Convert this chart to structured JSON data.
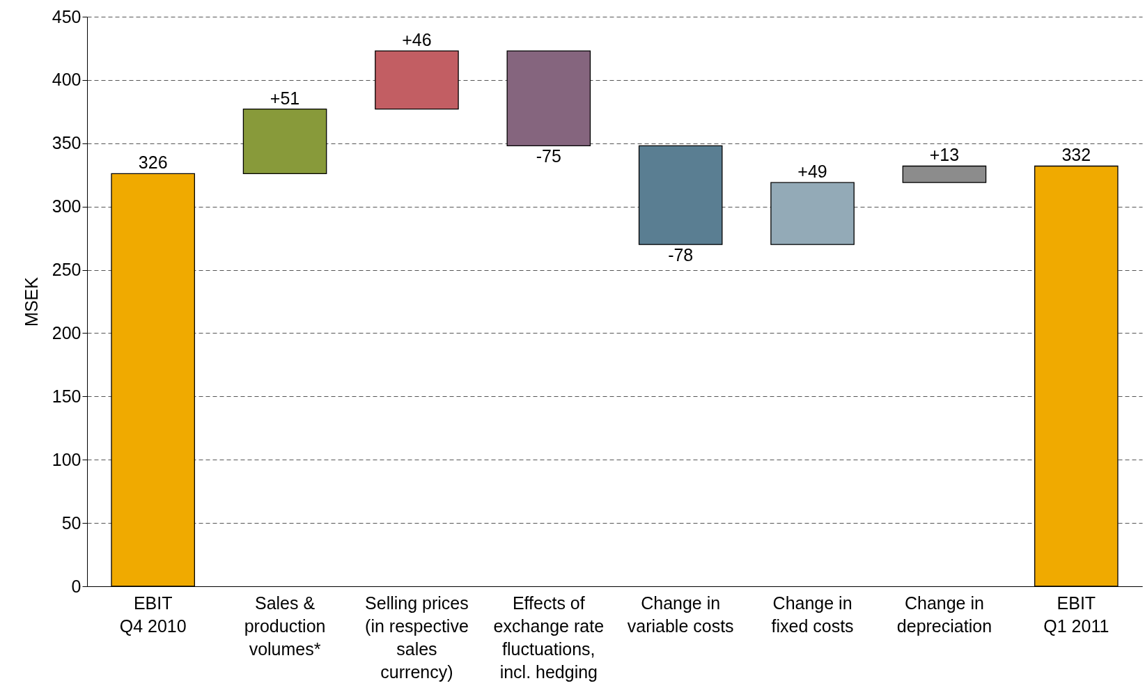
{
  "chart_data": {
    "type": "bar",
    "ylabel": "MSEK",
    "categories": [
      "EBIT\nQ4 2010",
      "Sales &\nproduction\nvolumes*",
      "Selling prices\n(in respective\nsales\ncurrency)",
      "Effects of\nexchange rate\nfluctuations,\nincl. hedging",
      "Change in\nvariable costs",
      "Change in\nfixed costs",
      "Change in\ndepreciation",
      "EBIT\nQ1 2011"
    ],
    "values": [
      326,
      51,
      46,
      -75,
      -78,
      49,
      13,
      332
    ],
    "base": [
      0,
      326,
      377,
      423,
      348,
      270,
      319,
      0
    ],
    "colors": [
      "#f0aa00",
      "#889a3a",
      "#c25e63",
      "#85657e",
      "#5a7e92",
      "#93aab7",
      "#8c8c8c",
      "#f0aa00"
    ],
    "value_labels": [
      "326",
      "+51",
      "+46",
      "-75",
      "-78",
      "+49",
      "+13",
      "332"
    ],
    "ylim": [
      0,
      450
    ],
    "yticks": [
      0,
      50,
      100,
      150,
      200,
      250,
      300,
      350,
      400,
      450
    ],
    "grid": "y"
  }
}
